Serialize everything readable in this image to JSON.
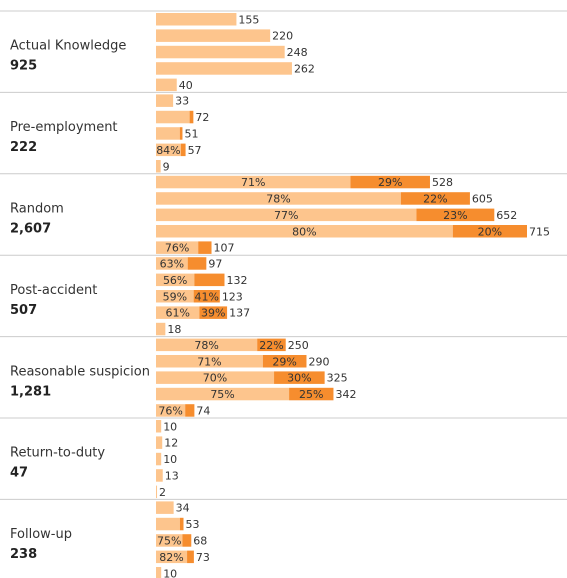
{
  "chart_data": {
    "type": "bar",
    "orientation": "horizontal",
    "stacked": true,
    "colors": {
      "light": "#fdc58d",
      "dark": "#f68d2e",
      "divider": "#cccccc"
    },
    "groups": [
      {
        "label": "Actual Knowledge",
        "total": "925",
        "bars": [
          {
            "total": 155,
            "total_label": "155"
          },
          {
            "total": 220,
            "total_label": "220"
          },
          {
            "total": 248,
            "total_label": "248"
          },
          {
            "total": 262,
            "total_label": "262"
          },
          {
            "total": 40,
            "total_label": "40"
          }
        ]
      },
      {
        "label": "Pre-employment",
        "total": "222",
        "bars": [
          {
            "total": 33,
            "total_label": "33"
          },
          {
            "total": 72,
            "total_label": "72",
            "light_fraction": 0.9
          },
          {
            "total": 51,
            "total_label": "51",
            "light_fraction": 0.9
          },
          {
            "total": 57,
            "total_label": "57",
            "light_fraction": 0.84,
            "light_pct": "84%"
          },
          {
            "total": 9,
            "total_label": "9"
          }
        ]
      },
      {
        "label": "Random",
        "total": "2,607",
        "bars": [
          {
            "total": 528,
            "total_label": "528",
            "light_fraction": 0.71,
            "light_pct": "71%",
            "dark_pct": "29%"
          },
          {
            "total": 605,
            "total_label": "605",
            "light_fraction": 0.78,
            "light_pct": "78%",
            "dark_pct": "22%"
          },
          {
            "total": 652,
            "total_label": "652",
            "light_fraction": 0.77,
            "light_pct": "77%",
            "dark_pct": "23%"
          },
          {
            "total": 715,
            "total_label": "715",
            "light_fraction": 0.8,
            "light_pct": "80%",
            "dark_pct": "20%"
          },
          {
            "total": 107,
            "total_label": "107",
            "light_fraction": 0.76,
            "light_pct": "76%"
          }
        ]
      },
      {
        "label": "Post-accident",
        "total": "507",
        "bars": [
          {
            "total": 97,
            "total_label": "97",
            "light_fraction": 0.63,
            "light_pct": "63%"
          },
          {
            "total": 132,
            "total_label": "132",
            "light_fraction": 0.56,
            "light_pct": "56%"
          },
          {
            "total": 123,
            "total_label": "123",
            "light_fraction": 0.59,
            "light_pct": "59%",
            "dark_pct": "41%"
          },
          {
            "total": 137,
            "total_label": "137",
            "light_fraction": 0.61,
            "light_pct": "61%",
            "dark_pct": "39%"
          },
          {
            "total": 18,
            "total_label": "18"
          }
        ]
      },
      {
        "label": "Reasonable suspicion",
        "total": "1,281",
        "bars": [
          {
            "total": 250,
            "total_label": "250",
            "light_fraction": 0.78,
            "light_pct": "78%",
            "dark_pct": "22%"
          },
          {
            "total": 290,
            "total_label": "290",
            "light_fraction": 0.71,
            "light_pct": "71%",
            "dark_pct": "29%"
          },
          {
            "total": 325,
            "total_label": "325",
            "light_fraction": 0.7,
            "light_pct": "70%",
            "dark_pct": "30%"
          },
          {
            "total": 342,
            "total_label": "342",
            "light_fraction": 0.75,
            "light_pct": "75%",
            "dark_pct": "25%"
          },
          {
            "total": 74,
            "total_label": "74",
            "light_fraction": 0.76,
            "light_pct": "76%"
          }
        ]
      },
      {
        "label": "Return-to-duty",
        "total": "47",
        "bars": [
          {
            "total": 10,
            "total_label": "10"
          },
          {
            "total": 12,
            "total_label": "12"
          },
          {
            "total": 10,
            "total_label": "10"
          },
          {
            "total": 13,
            "total_label": "13"
          },
          {
            "total": 2,
            "total_label": "2"
          }
        ]
      },
      {
        "label": "Follow-up",
        "total": "238",
        "bars": [
          {
            "total": 34,
            "total_label": "34"
          },
          {
            "total": 53,
            "total_label": "53",
            "light_fraction": 0.87
          },
          {
            "total": 68,
            "total_label": "68",
            "light_fraction": 0.75,
            "light_pct": "75%"
          },
          {
            "total": 73,
            "total_label": "73",
            "light_fraction": 0.82,
            "light_pct": "82%"
          },
          {
            "total": 10,
            "total_label": "10"
          }
        ]
      }
    ]
  }
}
